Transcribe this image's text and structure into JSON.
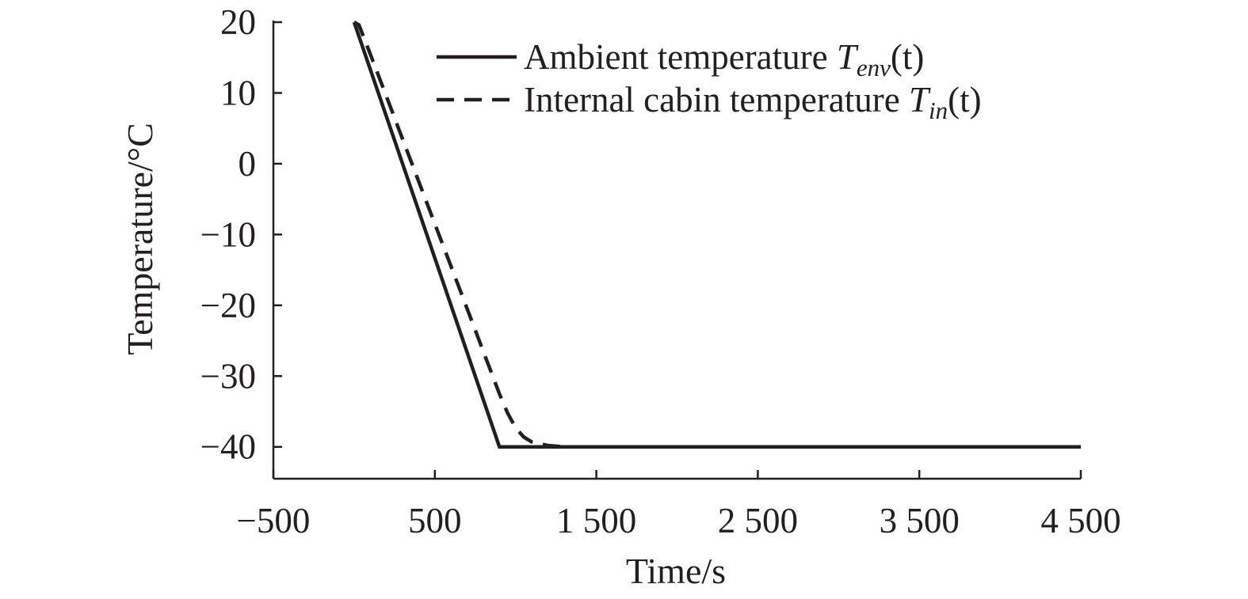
{
  "chart_data": {
    "type": "line",
    "title": "",
    "xlabel": "Time/s",
    "ylabel": "Temperature/°C",
    "xlim": [
      -500,
      4500
    ],
    "ylim": [
      -44.5,
      20
    ],
    "x_ticks": [
      -500,
      500,
      1500,
      2500,
      3500,
      4500
    ],
    "x_tick_labels": [
      "−500",
      "500",
      "1 500",
      "2 500",
      "3 500",
      "4 500"
    ],
    "y_ticks": [
      20,
      10,
      0,
      -10,
      -20,
      -30,
      -40
    ],
    "y_tick_labels": [
      "20",
      "10",
      "0",
      "−10",
      "−20",
      "−30",
      "−40"
    ],
    "grid": false,
    "legend_position": "top-right",
    "series": [
      {
        "name": "Ambient temperature T_env(t)",
        "legend_prefix": "Ambient temperature ",
        "legend_symbol": "T",
        "legend_subscript": "env",
        "legend_suffix": "(t)",
        "style": "solid",
        "color": "#231f20",
        "x": [
          0,
          900,
          4500
        ],
        "y": [
          20,
          -40,
          -40
        ]
      },
      {
        "name": "Internal cabin temperature T_in(t)",
        "legend_prefix": "Internal cabin temperature ",
        "legend_symbol": "T",
        "legend_subscript": "in",
        "legend_suffix": "(t)",
        "style": "dashed",
        "color": "#231f20",
        "x": [
          0,
          30,
          100,
          200,
          300,
          400,
          500,
          600,
          700,
          800,
          900,
          950,
          1000,
          1050,
          1100,
          1200,
          1300,
          4500
        ],
        "y": [
          20,
          19.6,
          15.5,
          9.5,
          3.5,
          -2.5,
          -8.5,
          -14.5,
          -20.5,
          -26.5,
          -32.5,
          -35.2,
          -37.3,
          -38.6,
          -39.3,
          -39.8,
          -40,
          -40
        ]
      }
    ]
  }
}
